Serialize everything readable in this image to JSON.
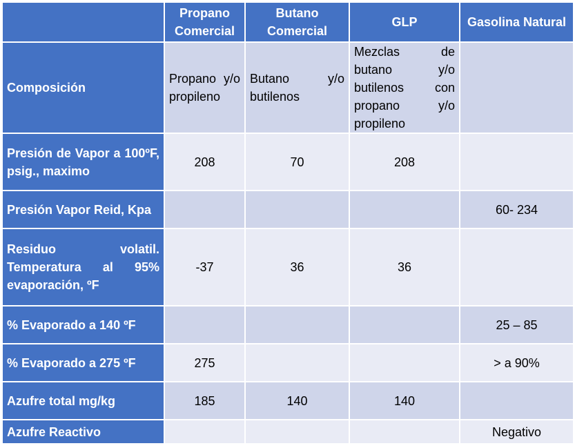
{
  "headers": [
    "",
    "Propano Comercial",
    "Butano Comercial",
    "GLP",
    "Gasolina Natural"
  ],
  "rows": [
    {
      "label": "Composición",
      "cells": [
        "Propano y/o propileno",
        "Butano y/o butilenos",
        "Mezclas de butano y/o butilenos con propano y/o propileno",
        ""
      ]
    },
    {
      "label": "Presión de Vapor a 100ºF, psig., maximo",
      "cells": [
        "208",
        "70",
        "208",
        ""
      ]
    },
    {
      "label": "Presión Vapor Reid, Kpa",
      "cells": [
        "",
        "",
        "",
        "60- 234"
      ]
    },
    {
      "label": "Residuo volatil. Temperatura al 95% evaporación, ºF",
      "cells": [
        "-37",
        "36",
        "36",
        ""
      ]
    },
    {
      "label": "% Evaporado a 140 ºF",
      "cells": [
        "",
        "",
        "",
        "25 – 85"
      ]
    },
    {
      "label": "% Evaporado a 275 ºF",
      "cells": [
        "275",
        "",
        "",
        "> a 90%"
      ]
    },
    {
      "label": "Azufre total mg/kg",
      "cells": [
        "185",
        "140",
        "140",
        ""
      ]
    },
    {
      "label": "Azufre Reactivo",
      "cells": [
        "",
        "",
        "",
        "Negativo"
      ]
    }
  ],
  "colors": {
    "header": "#4472c4",
    "row_odd": "#cfd5ea",
    "row_even": "#e9ebf5"
  }
}
